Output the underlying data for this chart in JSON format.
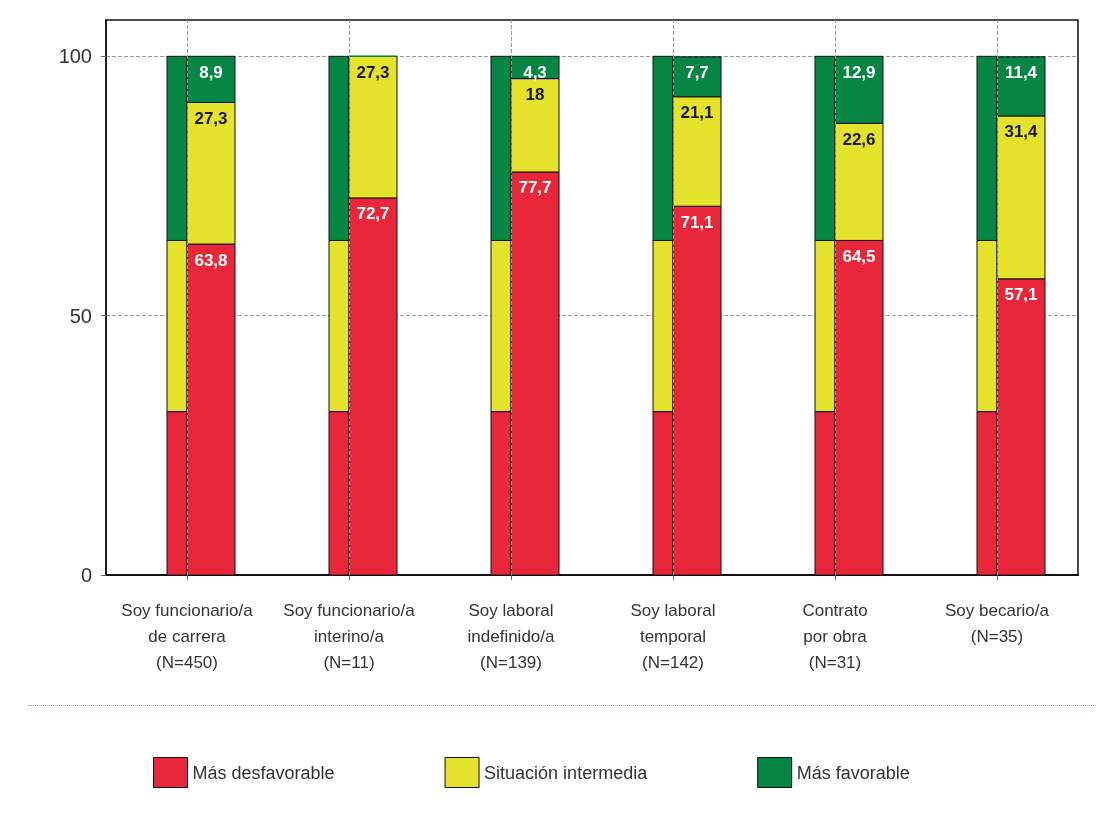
{
  "chart_data": {
    "type": "bar",
    "categories": [
      "Soy funcionario/a\nde carrera\n(N=450)",
      "Soy funcionario/a\ninterino/a\n(N=11)",
      "Soy laboral\nindefinido/a\n(N=139)",
      "Soy laboral\ntemporal\n(N=142)",
      "Contrato\npor obra\n(N=31)",
      "Soy becario/a\n(N=35)"
    ],
    "series": [
      {
        "color": "#e8283a",
        "values": [
          31.5,
          31.5,
          31.5,
          31.5,
          31.5,
          31.5
        ],
        "base": [
          0,
          0,
          0,
          0,
          0,
          0
        ]
      },
      {
        "color": "#e4e22a",
        "values": [
          33,
          33,
          33,
          33,
          33,
          33
        ],
        "base": [
          31.5,
          31.5,
          31.5,
          31.5,
          31.5,
          31.5
        ]
      },
      {
        "color": "#078643",
        "values": [
          35.5,
          35.5,
          35.5,
          35.5,
          35.5,
          35.5
        ],
        "base": [
          64.5,
          64.5,
          64.5,
          64.5,
          64.5,
          64.5
        ]
      },
      {
        "name": "Más desfavorable",
        "color": "#e8283a",
        "values": [
          63.8,
          72.7,
          77.7,
          71.1,
          64.5,
          57.1
        ],
        "base": [
          0,
          0,
          0,
          0,
          0,
          0
        ],
        "value_labels": [
          "63,8",
          "72,7",
          "77,7",
          "71,1",
          "64,5",
          "57,1"
        ]
      },
      {
        "name": "Situación intermedia",
        "color": "#e4e22a",
        "values": [
          27.3,
          27.3,
          18,
          21.1,
          22.6,
          31.4
        ],
        "base": [
          63.8,
          72.7,
          77.7,
          71.1,
          64.5,
          57.1
        ],
        "value_labels": [
          "27,3",
          "27,3",
          "18",
          "21,1",
          "22,6",
          "31,4"
        ]
      },
      {
        "name": "Más favorable",
        "color": "#078643",
        "values": [
          8.9,
          0,
          4.3,
          7.7,
          12.9,
          11.4
        ],
        "base": [
          91.1,
          100,
          95.7,
          92.2,
          87.1,
          88.5
        ],
        "value_labels": [
          "8,9",
          null,
          "4,3",
          "7,7",
          "12,9",
          "11,4"
        ]
      }
    ],
    "ylim": [
      0,
      107
    ],
    "yticks": [
      0,
      50,
      100
    ],
    "grid": true,
    "legend": "bottom"
  }
}
